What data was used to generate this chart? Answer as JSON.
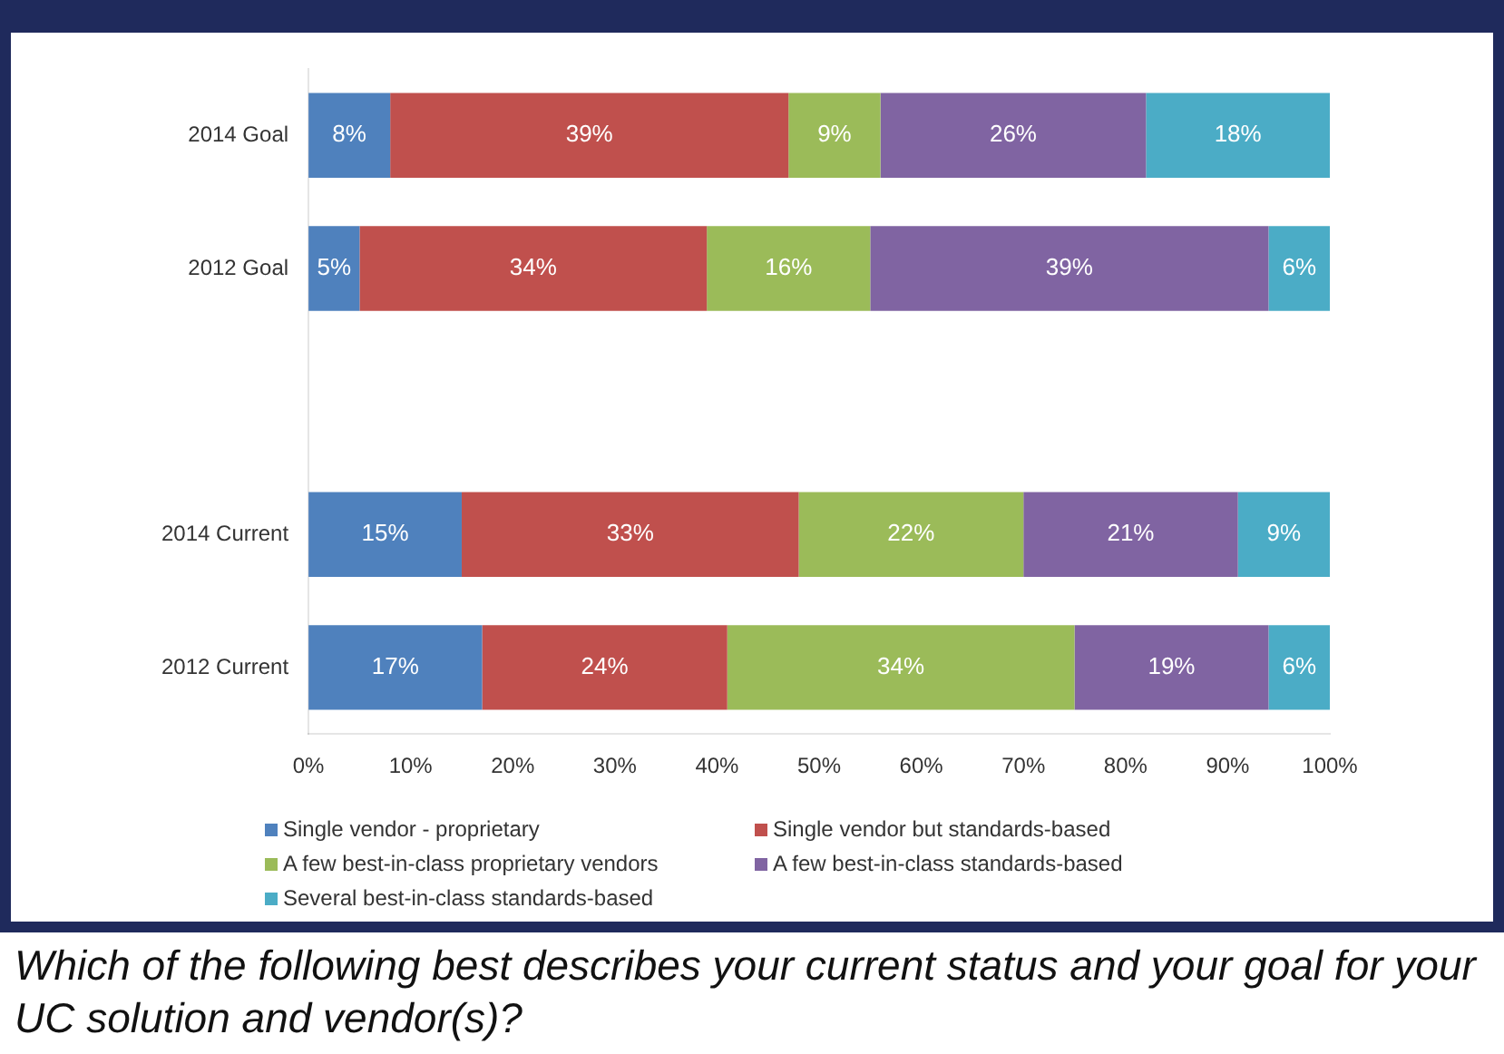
{
  "chart_data": {
    "type": "bar",
    "orientation": "horizontal",
    "stacked": true,
    "legend": "bottom",
    "categories": [
      "2014 Goal",
      "2012 Goal",
      null,
      "2014 Current",
      "2012 Current"
    ],
    "series": [
      {
        "name": "Single vendor - proprietary",
        "color": "#4f81bd",
        "values": [
          8,
          5,
          null,
          15,
          17
        ],
        "value_labels": [
          "8%",
          "5%",
          null,
          "15%",
          "17%"
        ]
      },
      {
        "name": "Single vendor but standards-based",
        "color": "#c0504d",
        "values": [
          39,
          34,
          null,
          33,
          24
        ],
        "value_labels": [
          "39%",
          "34%",
          null,
          "33%",
          "24%"
        ]
      },
      {
        "name": "A few best-in-class proprietary vendors",
        "color": "#9bbb59",
        "values": [
          9,
          16,
          null,
          22,
          34
        ],
        "value_labels": [
          "9%",
          "16%",
          null,
          "22%",
          "34%"
        ]
      },
      {
        "name": "A few best-in-class standards-based",
        "color": "#8064a2",
        "values": [
          26,
          39,
          null,
          21,
          19
        ],
        "value_labels": [
          "26%",
          "39%",
          null,
          "21%",
          "19%"
        ]
      },
      {
        "name": "Several best-in-class standards-based",
        "color": "#4bacc6",
        "values": [
          18,
          6,
          null,
          9,
          6
        ],
        "value_labels": [
          "18%",
          "6%",
          null,
          "9%",
          "6%"
        ]
      }
    ],
    "xlim": [
      0,
      100
    ],
    "xticks": [
      {
        "value": 0,
        "label": "0%"
      },
      {
        "value": 10,
        "label": "10%"
      },
      {
        "value": 20,
        "label": "20%"
      },
      {
        "value": 30,
        "label": "30%"
      },
      {
        "value": 40,
        "label": "40%"
      },
      {
        "value": 50,
        "label": "50%"
      },
      {
        "value": 60,
        "label": "60%"
      },
      {
        "value": 70,
        "label": "70%"
      },
      {
        "value": 80,
        "label": "80%"
      },
      {
        "value": 90,
        "label": "90%"
      },
      {
        "value": 100,
        "label": "100%"
      }
    ],
    "annotations": [
      "Which of the following best describes your current status and your goal for your UC solution and vendor(s)?"
    ]
  }
}
